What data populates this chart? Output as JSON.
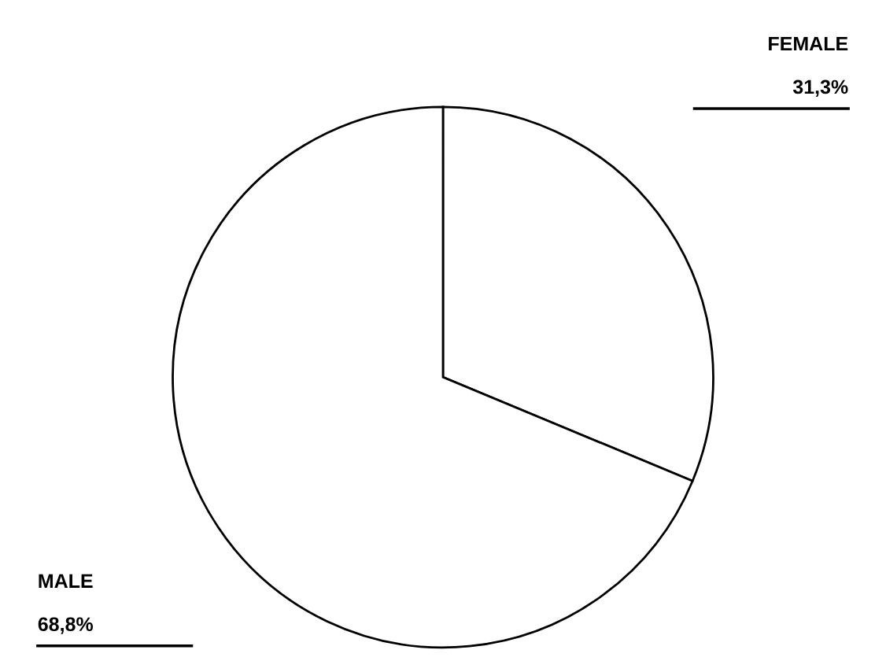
{
  "chart_data": {
    "type": "pie",
    "categories": [
      "FEMALE",
      "MALE"
    ],
    "values": [
      31.3,
      68.8
    ],
    "colors": [
      "#ffffff",
      "#ffffff"
    ],
    "value_labels": [
      "31,3%",
      "68,8%"
    ],
    "legend": false
  }
}
